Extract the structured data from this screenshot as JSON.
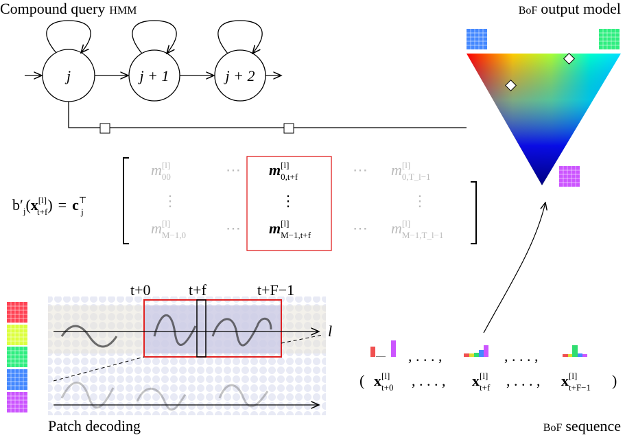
{
  "hmm": {
    "title": "Compound query",
    "title_abbr": "HMM",
    "states": [
      "j",
      "j + 1",
      "j + 2"
    ]
  },
  "output_model": {
    "title_abbr": "BoF",
    "title": "output model"
  },
  "equation": {
    "lhs": "b′",
    "lhs_sub": "j",
    "open": "(",
    "arg": "x",
    "arg_sup": "[l]",
    "arg_sub": "t+f",
    "close": ")",
    "eq": "=",
    "rhs": "c",
    "rhs_sup": "⊤",
    "rhs_sub": "j"
  },
  "matrix": {
    "rows": [
      [
        {
          "base": "m",
          "sup": "[l]",
          "sub": "00"
        },
        "⋯",
        {
          "base": "m",
          "sup": "[l]",
          "sub": "0,t+f"
        },
        "⋯",
        {
          "base": "m",
          "sup": "[l]",
          "sub": "0,T_l−1"
        }
      ],
      [
        "⋮",
        "⋮",
        "⋮"
      ],
      [
        {
          "base": "m",
          "sup": "[l]",
          "sub": "M−1,0"
        },
        "⋯",
        {
          "base": "m",
          "sup": "[l]",
          "sub": "M−1,t+f"
        },
        "⋯",
        {
          "base": "m",
          "sup": "[l]",
          "sub": "M−1,T_l−1"
        }
      ]
    ]
  },
  "patch": {
    "offsets": [
      "t+0",
      "t+f",
      "t+F−1"
    ],
    "line_label": "l",
    "label": "Patch decoding"
  },
  "sequence": {
    "separator": ", . . . ,",
    "open": "(",
    "close": ")",
    "items": [
      {
        "base": "x",
        "sup": "[l]",
        "sub": "t+0"
      },
      {
        "base": "x",
        "sup": "[l]",
        "sub": "t+f"
      },
      {
        "base": "x",
        "sup": "[l]",
        "sub": "t+F−1"
      }
    ],
    "label_abbr": "BoF",
    "label": "sequence"
  }
}
